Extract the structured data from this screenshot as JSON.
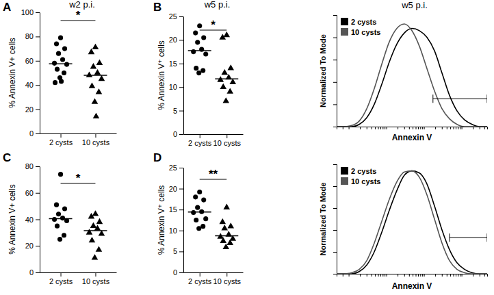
{
  "chart_data": [
    {
      "type": "scatter",
      "panel": "A",
      "title": "w2 p.i.",
      "y_label": "% Annexin V+ cells",
      "categories": [
        "2 cysts",
        "10 cysts"
      ],
      "groups": [
        {
          "marker": "circle",
          "color": "#000000",
          "values": [
            79,
            74,
            70,
            66,
            61,
            58,
            57,
            53,
            50,
            46,
            43,
            42
          ],
          "median": 57.5
        },
        {
          "marker": "triangle",
          "color": "#000000",
          "values": [
            71,
            67,
            58,
            55,
            50,
            48,
            45,
            39,
            34,
            26,
            14
          ],
          "median": 48
        }
      ],
      "ylim": [
        0,
        100
      ],
      "yticks": [
        0,
        20,
        40,
        60,
        80,
        100
      ],
      "significance": "*"
    },
    {
      "type": "scatter",
      "panel": "B",
      "title": "w5 p.i.",
      "y_label": "% Annexin V⁺ cells",
      "categories": [
        "2 cysts",
        "10 cysts"
      ],
      "groups": [
        {
          "marker": "circle",
          "color": "#000000",
          "values": [
            23,
            21.5,
            20.5,
            19.5,
            18,
            17.5,
            17,
            14,
            13.5,
            13
          ],
          "median": 17.75
        },
        {
          "marker": "triangle",
          "color": "#000000",
          "values": [
            21,
            20.5,
            14,
            13,
            12,
            11.5,
            11,
            10,
            9,
            7
          ],
          "median": 11.75
        }
      ],
      "ylim": [
        0,
        25
      ],
      "yticks": [
        0,
        5,
        10,
        15,
        20,
        25
      ],
      "significance": "*"
    },
    {
      "type": "scatter",
      "panel": "C",
      "y_label": "% Annexin V+ cells",
      "categories": [
        "2 cysts",
        "10 cysts"
      ],
      "groups": [
        {
          "marker": "circle",
          "color": "#000000",
          "values": [
            74,
            51,
            48,
            44,
            41,
            40,
            39,
            35,
            28,
            25
          ],
          "median": 40.5
        },
        {
          "marker": "triangle",
          "color": "#000000",
          "values": [
            44,
            42,
            38,
            35,
            33,
            30,
            29,
            24,
            17,
            11
          ],
          "median": 31.5
        }
      ],
      "ylim": [
        0,
        80
      ],
      "yticks": [
        0,
        20,
        40,
        60,
        80
      ],
      "significance": "*"
    },
    {
      "type": "scatter",
      "panel": "D",
      "y_label": "% Annexin V⁺ cells",
      "categories": [
        "2 cysts",
        "10 cysts"
      ],
      "groups": [
        {
          "marker": "circle",
          "color": "#000000",
          "values": [
            19.2,
            18,
            17.3,
            15.5,
            14.5,
            14.3,
            12.8,
            12.5,
            11,
            10.5
          ],
          "median": 14.4
        },
        {
          "marker": "triangle",
          "color": "#000000",
          "values": [
            15.5,
            12,
            11,
            10.5,
            9,
            8.5,
            8,
            7.5,
            7,
            6
          ],
          "median": 8.75
        }
      ],
      "ylim": [
        0,
        25
      ],
      "yticks": [
        0,
        5,
        10,
        15,
        20,
        25
      ],
      "significance": "**"
    },
    {
      "type": "line",
      "title": "w5 p.i.",
      "x_label": "Annexin V",
      "y_label": "Normalized To Mode",
      "x": [
        0,
        5,
        10,
        15,
        20,
        25,
        30,
        35,
        40,
        45,
        50,
        55,
        60,
        65,
        70,
        75,
        80,
        85,
        90,
        95,
        100
      ],
      "series": [
        {
          "name": "2 cysts",
          "color": "#000000",
          "values": [
            0,
            0,
            0,
            2,
            8,
            20,
            38,
            58,
            74,
            84,
            88,
            86,
            80,
            68,
            48,
            28,
            14,
            6,
            2,
            0,
            0
          ]
        },
        {
          "name": "10 cysts",
          "color": "#555555",
          "values": [
            0,
            0,
            1,
            5,
            16,
            34,
            56,
            76,
            88,
            92,
            86,
            72,
            52,
            32,
            16,
            7,
            2,
            0,
            0,
            0,
            0
          ]
        }
      ],
      "xlim": [
        0,
        100
      ],
      "ylim": [
        0,
        100
      ],
      "xticks": [
        0,
        4,
        8,
        15.5,
        19.9,
        23.1,
        25.5,
        27.5,
        29.1,
        30.6,
        31.9,
        33,
        40.5,
        44.9,
        48.1,
        50.5,
        52.5,
        54.1,
        55.6,
        56.9,
        58,
        65.5,
        69.9,
        73.1,
        75.5,
        77.5,
        79.1,
        80.6,
        81.9,
        83,
        90.5,
        94.9,
        98.1
      ],
      "yticks": [
        0,
        20,
        40,
        60,
        80,
        100
      ],
      "tick_labels": false,
      "legend": "upper left",
      "gate": {
        "x": [
          64,
          100
        ],
        "y": 25
      }
    },
    {
      "type": "line",
      "x_label": "Annexin V",
      "y_label": "Normalized To Mode",
      "x": [
        0,
        5,
        10,
        15,
        20,
        25,
        30,
        35,
        40,
        45,
        50,
        55,
        60,
        65,
        70,
        75,
        80,
        85,
        90,
        95,
        100
      ],
      "series": [
        {
          "name": "2 cysts",
          "color": "#000000",
          "values": [
            0,
            0,
            0,
            2,
            8,
            20,
            38,
            58,
            76,
            90,
            94,
            92,
            82,
            62,
            40,
            22,
            10,
            4,
            1,
            0,
            0
          ]
        },
        {
          "name": "10 cysts",
          "color": "#555555",
          "values": [
            0,
            0,
            1,
            4,
            12,
            28,
            48,
            68,
            84,
            93,
            94,
            88,
            72,
            50,
            28,
            12,
            4,
            1,
            0,
            0,
            0
          ]
        }
      ],
      "xlim": [
        0,
        100
      ],
      "ylim": [
        0,
        100
      ],
      "xticks": [
        0,
        4,
        8,
        15.5,
        19.9,
        23.1,
        25.5,
        27.5,
        29.1,
        30.6,
        31.9,
        33,
        40.5,
        44.9,
        48.1,
        50.5,
        52.5,
        54.1,
        55.6,
        56.9,
        58,
        65.5,
        69.9,
        73.1,
        75.5,
        77.5,
        79.1,
        80.6,
        81.9,
        83,
        90.5,
        94.9,
        98.1
      ],
      "yticks": [
        0,
        20,
        40,
        60,
        80,
        100
      ],
      "tick_labels": false,
      "legend": "upper left",
      "gate": {
        "x": [
          75,
          100
        ],
        "y": 33
      }
    }
  ]
}
